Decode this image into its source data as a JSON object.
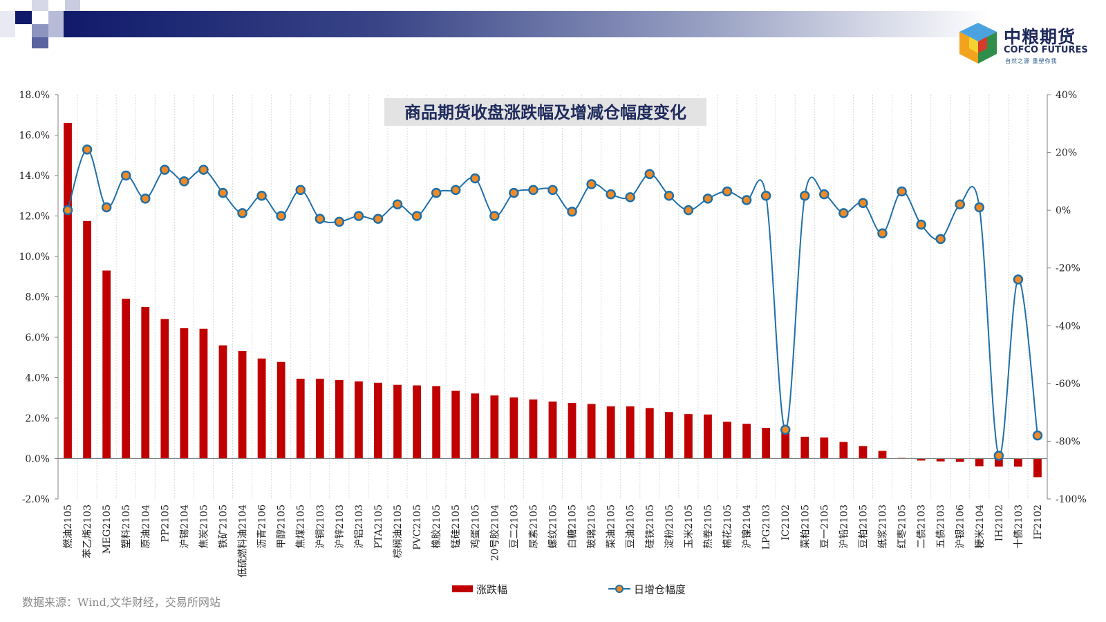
{
  "brand": {
    "name_cn": "中粮期货",
    "name_en": "COFCO FUTURES",
    "slogan": "自然之源 重塑你我"
  },
  "source_note": "数据来源：Wind,文华财经，交易所网站",
  "colors": {
    "bar": "#c00000",
    "line": "#1f6fa8",
    "marker": "#f08a24",
    "title_bg": "#e3e3e3",
    "title_text": "#1f2a5c"
  },
  "chart_data": {
    "type": "bar",
    "title": "商品期货收盘涨跌幅及增减仓幅度变化",
    "categories": [
      "燃油2105",
      "苯乙烯2103",
      "MEG2105",
      "塑料2105",
      "原油2104",
      "PP2105",
      "沪锡2104",
      "焦炭2105",
      "铁矿2105",
      "低硫燃料油2104",
      "沥青2106",
      "甲醇2105",
      "焦煤2105",
      "沪铜2103",
      "沪锌2103",
      "沪铝2103",
      "PTA2105",
      "棕榈油2105",
      "PVC2105",
      "橡胶2105",
      "锰硅2105",
      "鸡蛋2105",
      "20号胶2104",
      "豆二2103",
      "尿素2105",
      "螺纹2105",
      "白糖2105",
      "玻璃2105",
      "菜油2105",
      "豆油2105",
      "硅铁2105",
      "淀粉2105",
      "玉米2105",
      "热卷2105",
      "棉花2105",
      "沪镍2104",
      "LPG2103",
      "IC2102",
      "菜粕2105",
      "豆一2105",
      "沪铅2103",
      "豆粕2105",
      "纸浆2103",
      "红枣2105",
      "二债2103",
      "五债2103",
      "沪银2106",
      "粳米2104",
      "IH2102",
      "十债2103",
      "IF2102"
    ],
    "series": [
      {
        "name": "涨跌幅",
        "type": "bar",
        "axis": "left",
        "values": [
          16.6,
          11.75,
          9.3,
          7.9,
          7.5,
          6.9,
          6.45,
          6.42,
          5.6,
          5.32,
          4.95,
          4.78,
          3.95,
          3.95,
          3.88,
          3.82,
          3.75,
          3.65,
          3.62,
          3.58,
          3.35,
          3.22,
          3.12,
          3.02,
          2.92,
          2.82,
          2.75,
          2.7,
          2.58,
          2.58,
          2.5,
          2.3,
          2.2,
          2.18,
          1.82,
          1.72,
          1.52,
          1.35,
          1.08,
          1.04,
          0.82,
          0.62,
          0.38,
          0.03,
          -0.1,
          -0.14,
          -0.16,
          -0.38,
          -0.4,
          -0.4,
          -0.92
        ]
      },
      {
        "name": "日增仓幅度",
        "type": "line",
        "axis": "right",
        "values": [
          0,
          21,
          1,
          12,
          4,
          14,
          10,
          14,
          6,
          -1,
          5,
          -2,
          7,
          -3,
          -4,
          -2,
          -3,
          2,
          -2,
          6,
          7,
          11,
          -2,
          6,
          7,
          7,
          -0.5,
          9,
          5.5,
          4.5,
          12.5,
          5,
          0,
          4,
          6.5,
          3.5,
          5,
          -76,
          5,
          5.5,
          -1,
          2.5,
          -8,
          6.5,
          -5,
          -10,
          2,
          1,
          -85,
          -24,
          -78
        ]
      }
    ],
    "y_left": {
      "min": -2,
      "max": 18,
      "step": 2,
      "format": "percent1",
      "ticks": [
        "-2.0%",
        "0.0%",
        "2.0%",
        "4.0%",
        "6.0%",
        "8.0%",
        "10.0%",
        "12.0%",
        "14.0%",
        "16.0%",
        "18.0%"
      ]
    },
    "y_right": {
      "min": -100,
      "max": 40,
      "step": 20,
      "format": "percent0",
      "ticks": [
        "-100%",
        "-80%",
        "-60%",
        "-40%",
        "-20%",
        "0%",
        "20%",
        "40%"
      ]
    },
    "grid": {
      "vertical": true,
      "horizontal": false
    },
    "legend": {
      "position": "bottom-center",
      "entries": [
        "涨跌幅",
        "日增仓幅度"
      ]
    }
  }
}
